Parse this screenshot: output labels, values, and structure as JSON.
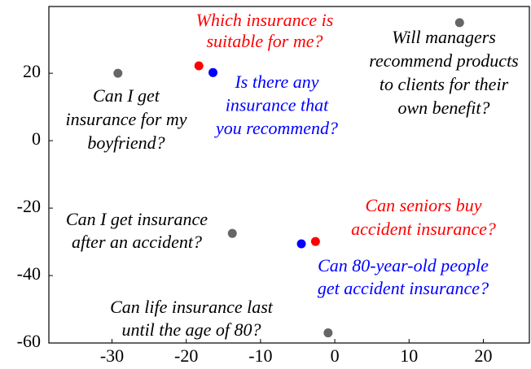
{
  "chart_data": {
    "type": "scatter",
    "x": [
      -29.2,
      -18.3,
      -16.4,
      16.8,
      -13.8,
      -4.5,
      -2.6,
      -0.9
    ],
    "y": [
      20,
      22.2,
      20.2,
      35,
      -27.5,
      -30.6,
      -29.9,
      -57
    ],
    "colors": [
      "#666666",
      "#ff0000",
      "#0000ff",
      "#666666",
      "#666666",
      "#0000ff",
      "#ff0000",
      "#666666"
    ],
    "labels": [
      [
        "Can I get",
        "insurance for my",
        "boyfriend?"
      ],
      [
        "Which insurance is",
        "suitable for me?"
      ],
      [
        "Is there any",
        "insurance that",
        "you recommend?"
      ],
      [
        "Will managers",
        "recommend products",
        "to clients for their",
        "own benefit?"
      ],
      [
        "Can I get insurance",
        "after an accident?"
      ],
      [
        "Can 80-year-old people",
        "get accident insurance?"
      ],
      [
        "Can seniors buy",
        "accident insurance?"
      ],
      [
        "Can life insurance last",
        "until the age of 80?"
      ]
    ],
    "label_colors": [
      "#000000",
      "#ff0000",
      "#0000ff",
      "#000000",
      "#000000",
      "#0000ff",
      "#ff0000",
      "#000000"
    ],
    "xlim": [
      -38.5,
      26.2
    ],
    "xticks": [
      -30,
      -20,
      -10,
      0,
      10,
      20
    ],
    "ylim": [
      -60,
      39.8
    ],
    "yticks": [
      -60,
      -40,
      -20,
      0,
      20
    ]
  }
}
